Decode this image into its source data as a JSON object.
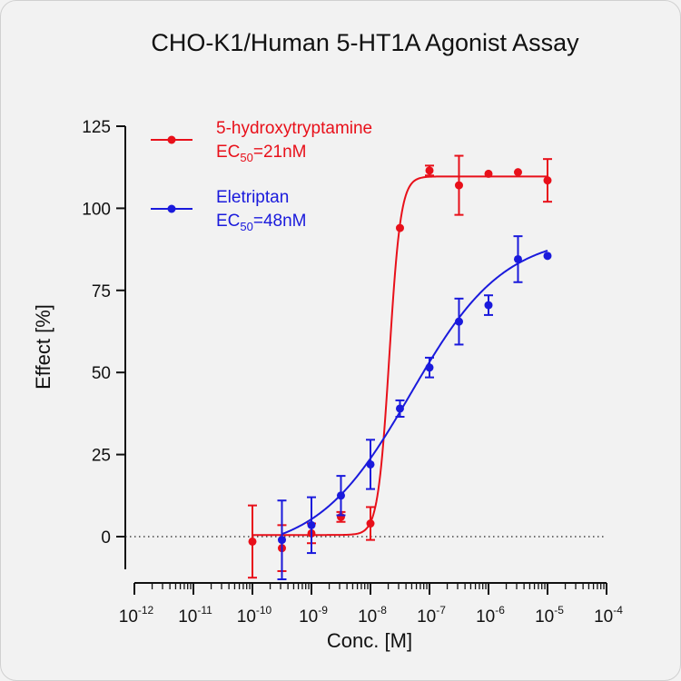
{
  "chart_data": {
    "type": "scatter",
    "title": "CHO-K1/Human 5-HT1A Agonist Assay",
    "xlabel": "Conc. [M]",
    "ylabel": "Effect  [%]",
    "x_scale": "log",
    "xlim": [
      1e-12,
      0.0001
    ],
    "ylim": [
      -10,
      125
    ],
    "x_ticks": [
      {
        "base": "10",
        "exp": "-12",
        "value": 1e-12
      },
      {
        "base": "10",
        "exp": "-11",
        "value": 1e-11
      },
      {
        "base": "10",
        "exp": "-10",
        "value": 1e-10
      },
      {
        "base": "10",
        "exp": "-9",
        "value": 1e-09
      },
      {
        "base": "10",
        "exp": "-8",
        "value": 1e-08
      },
      {
        "base": "10",
        "exp": "-7",
        "value": 1e-07
      },
      {
        "base": "10",
        "exp": "-6",
        "value": 1e-06
      },
      {
        "base": "10",
        "exp": "-5",
        "value": 1e-05
      },
      {
        "base": "10",
        "exp": "-4",
        "value": 0.0001
      }
    ],
    "y_ticks": [
      {
        "label": "0",
        "value": 0
      },
      {
        "label": "25",
        "value": 25
      },
      {
        "label": "50",
        "value": 50
      },
      {
        "label": "75",
        "value": 75
      },
      {
        "label": "100",
        "value": 100
      },
      {
        "label": "125",
        "value": 125
      }
    ],
    "reference_line": {
      "y": 0,
      "style": "dotted"
    },
    "grid": false,
    "legend_position": "top-left",
    "series": [
      {
        "name": "5-hydroxytryptamine",
        "ec_label": "EC",
        "ec_sub": "50",
        "ec_value": "=21nM",
        "color": "#e8101a",
        "points": [
          {
            "x": 1e-10,
            "y": -1.5,
            "err": 11
          },
          {
            "x": 3.16e-10,
            "y": -3.5,
            "err": 7
          },
          {
            "x": 1e-09,
            "y": 1,
            "err": 3
          },
          {
            "x": 3.16e-09,
            "y": 6,
            "err": 1.5
          },
          {
            "x": 1e-08,
            "y": 4,
            "err": 5
          },
          {
            "x": 3.16e-08,
            "y": 94,
            "err": 0
          },
          {
            "x": 1e-07,
            "y": 111.5,
            "err": 1.5
          },
          {
            "x": 3.16e-07,
            "y": 107,
            "err": 9
          },
          {
            "x": 1e-06,
            "y": 110.5,
            "err": 0
          },
          {
            "x": 3.16e-06,
            "y": 111,
            "err": 0
          },
          {
            "x": 1e-05,
            "y": 108.5,
            "err": 6.5
          }
        ],
        "fit": {
          "bottom": 0.5,
          "top": 109.7,
          "log_ec50": -7.68,
          "hill": 4.5
        }
      },
      {
        "name": "Eletriptan",
        "ec_label": "EC",
        "ec_sub": "50",
        "ec_value": "=48nM",
        "color": "#1a1adc",
        "points": [
          {
            "x": 3.16e-10,
            "y": -1,
            "err": 12
          },
          {
            "x": 1e-09,
            "y": 3.5,
            "err": 8.5
          },
          {
            "x": 3.16e-09,
            "y": 12.5,
            "err": 6
          },
          {
            "x": 1e-08,
            "y": 22,
            "err": 7.5
          },
          {
            "x": 3.16e-08,
            "y": 39,
            "err": 2.5
          },
          {
            "x": 1e-07,
            "y": 51.5,
            "err": 3
          },
          {
            "x": 3.16e-07,
            "y": 65.5,
            "err": 7
          },
          {
            "x": 1e-06,
            "y": 70.5,
            "err": 3
          },
          {
            "x": 3.16e-06,
            "y": 84.5,
            "err": 7
          },
          {
            "x": 1e-05,
            "y": 85.5,
            "err": 0
          }
        ],
        "fit": {
          "bottom": -5,
          "top": 92,
          "log_ec50": -7.32,
          "hill": 0.55
        }
      }
    ]
  }
}
